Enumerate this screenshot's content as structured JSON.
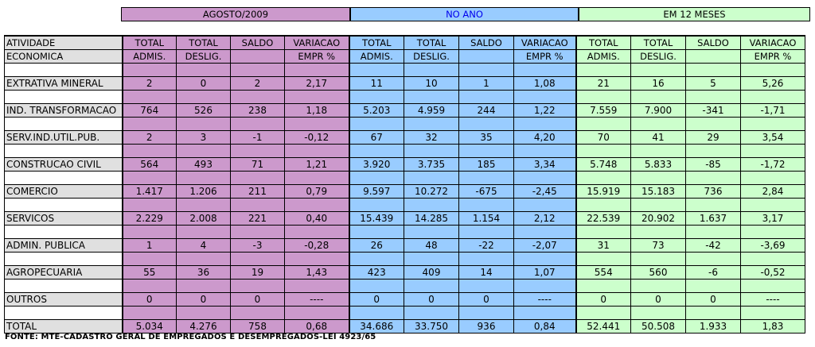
{
  "groups": {
    "agosto": "AGOSTO/2009",
    "ano": "NO ANO",
    "meses12": "EM 12 MESES"
  },
  "header": {
    "atividade": [
      "ATIVIDADE",
      "ECONOMICA"
    ],
    "cols": [
      [
        "TOTAL",
        "ADMIS."
      ],
      [
        "TOTAL",
        "DESLIG."
      ],
      [
        "SALDO",
        ""
      ],
      [
        "VARIACAO",
        "EMPR %"
      ],
      [
        "TOTAL",
        "ADMIS."
      ],
      [
        "TOTAL",
        "DESLIG."
      ],
      [
        "SALDO",
        ""
      ],
      [
        "VARIACAO",
        "EMPR %"
      ],
      [
        "TOTAL",
        "ADMIS."
      ],
      [
        "TOTAL",
        "DESLIG."
      ],
      [
        "SALDO",
        ""
      ],
      [
        "VARIACAO",
        "EMPR %"
      ]
    ]
  },
  "rows": [
    {
      "label": "EXTRATIVA MINERAL",
      "values": [
        "2",
        "0",
        "2",
        "2,17",
        "11",
        "10",
        "1",
        "1,08",
        "21",
        "16",
        "5",
        "5,26"
      ]
    },
    {
      "label": "IND. TRANSFORMACAO",
      "values": [
        "764",
        "526",
        "238",
        "1,18",
        "5.203",
        "4.959",
        "244",
        "1,22",
        "7.559",
        "7.900",
        "-341",
        "-1,71"
      ]
    },
    {
      "label": "SERV.IND.UTIL.PUB.",
      "values": [
        "2",
        "3",
        "-1",
        "-0,12",
        "67",
        "32",
        "35",
        "4,20",
        "70",
        "41",
        "29",
        "3,54"
      ]
    },
    {
      "label": "CONSTRUCAO CIVIL",
      "values": [
        "564",
        "493",
        "71",
        "1,21",
        "3.920",
        "3.735",
        "185",
        "3,34",
        "5.748",
        "5.833",
        "-85",
        "-1,72"
      ]
    },
    {
      "label": "COMERCIO",
      "values": [
        "1.417",
        "1.206",
        "211",
        "0,79",
        "9.597",
        "10.272",
        "-675",
        "-2,45",
        "15.919",
        "15.183",
        "736",
        "2,84"
      ]
    },
    {
      "label": "SERVICOS",
      "values": [
        "2.229",
        "2.008",
        "221",
        "0,40",
        "15.439",
        "14.285",
        "1.154",
        "2,12",
        "22.539",
        "20.902",
        "1.637",
        "3,17"
      ]
    },
    {
      "label": "ADMIN. PUBLICA",
      "values": [
        "1",
        "4",
        "-3",
        "-0,28",
        "26",
        "48",
        "-22",
        "-2,07",
        "31",
        "73",
        "-42",
        "-3,69"
      ]
    },
    {
      "label": "AGROPECUARIA",
      "values": [
        "55",
        "36",
        "19",
        "1,43",
        "423",
        "409",
        "14",
        "1,07",
        "554",
        "560",
        "-6",
        "-0,52"
      ]
    },
    {
      "label": "OUTROS",
      "values": [
        "0",
        "0",
        "0",
        "----",
        "0",
        "0",
        "0",
        "----",
        "0",
        "0",
        "0",
        "----"
      ]
    },
    {
      "label": "TOTAL",
      "values": [
        "5.034",
        "4.276",
        "758",
        "0,68",
        "34.686",
        "33.750",
        "936",
        "0,84",
        "52.441",
        "50.508",
        "1.933",
        "1,83"
      ]
    }
  ],
  "footer": "FONTE: MTE-CADASTRO GERAL DE EMPREGADOS E DESEMPREGADOS-LEI 4923/65",
  "colors": {
    "agosto": "#cc99cc",
    "ano": "#99ccff",
    "meses12": "#ccffcc",
    "label": "#e0e0e0"
  }
}
